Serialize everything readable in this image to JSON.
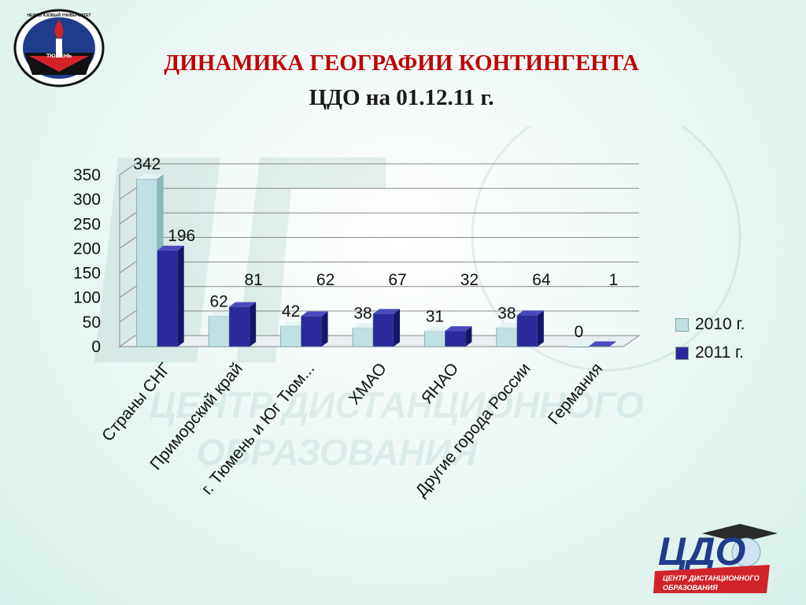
{
  "header": {
    "title_line1": "ДИНАМИКА ГЕОГРАФИИ КОНТИНГЕНТА",
    "title_line2": "ЦДО на 01.12.11 г."
  },
  "logos": {
    "top_left_ring_text": "ТЮМЕНЬ",
    "top_left_ring_text_top": "НЕФТЕГАЗОВЫЙ УНИВЕРСИТЕТ",
    "bottom_right_mark": "ЦДО",
    "bottom_right_line1": "ЦЕНТР ДИСТАНЦИОННОГО",
    "bottom_right_line2": "ОБРАЗОВАНИЯ",
    "watermark_line1": "ЦЕНТР ДИСТАНЦИОННОГО",
    "watermark_line2": "ОБРАЗОВАНИЯ"
  },
  "colors": {
    "series_2010": "#bfe1e3",
    "series_2011": "#2a2a9c",
    "title_red": "#c00000",
    "logo_blue": "#1f3c8c",
    "logo_red": "#d0242a"
  },
  "chart_data": {
    "type": "bar",
    "categories": [
      "Страны СНГ",
      "Приморский край",
      "г. Тюмень и Юг Тюм...",
      "ХМАО",
      "ЯНАО",
      "Другие города России",
      "Германия"
    ],
    "series": [
      {
        "name": "2010 г.",
        "values": [
          342,
          62,
          42,
          38,
          31,
          38,
          0
        ]
      },
      {
        "name": "2011 г.",
        "values": [
          196,
          81,
          62,
          67,
          32,
          64,
          1
        ]
      }
    ],
    "ylim": [
      0,
      350
    ],
    "yticks": [
      0,
      50,
      100,
      150,
      200,
      250,
      300,
      350
    ],
    "grid": true,
    "legend_position": "right",
    "style": "3d-clustered-column"
  }
}
